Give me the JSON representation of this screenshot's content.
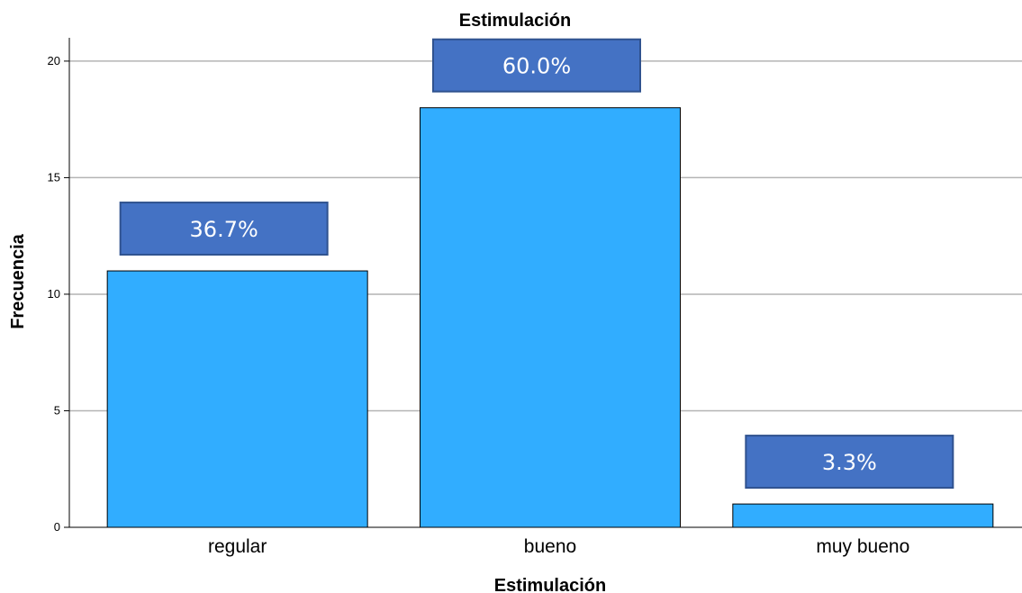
{
  "chart_data": {
    "type": "bar",
    "title": "Estimulación",
    "xlabel": "Estimulación",
    "ylabel": "Frecuencia",
    "categories": [
      "regular",
      "bueno",
      "muy bueno"
    ],
    "values": [
      11,
      18,
      1
    ],
    "data_labels": [
      "36.7%",
      "60.0%",
      "3.3%"
    ],
    "ylim": [
      0,
      21
    ],
    "yticks": [
      0,
      5,
      10,
      15,
      20
    ],
    "ytick_labels": [
      "0",
      "5",
      "10",
      "15",
      "20"
    ],
    "grid": true,
    "legend": "none",
    "bar_color": "#31adff",
    "label_box_color": "#4472c4",
    "label_text_color": "#ffffff"
  }
}
